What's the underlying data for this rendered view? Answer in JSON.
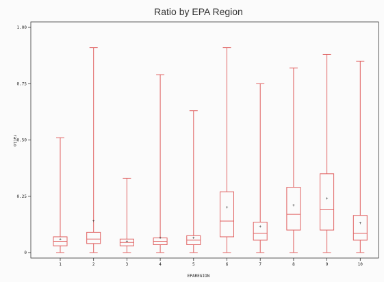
{
  "chart_data": {
    "type": "box",
    "title": "Ratio by EPA Region",
    "xlabel": "EPAREGION",
    "ylabel": "ratio",
    "ylim": [
      0,
      1
    ],
    "yticks": [
      "0",
      "0.25",
      "0.50",
      "0.75",
      "1.00"
    ],
    "categories": [
      "1",
      "2",
      "3",
      "4",
      "5",
      "6",
      "7",
      "8",
      "9",
      "10"
    ],
    "boxes": [
      {
        "min": 0.0,
        "q1": 0.03,
        "median": 0.05,
        "q3": 0.07,
        "max": 0.51,
        "mean": 0.06
      },
      {
        "min": 0.0,
        "q1": 0.04,
        "median": 0.06,
        "q3": 0.09,
        "max": 0.91,
        "mean": 0.14
      },
      {
        "min": 0.0,
        "q1": 0.03,
        "median": 0.045,
        "q3": 0.06,
        "max": 0.33,
        "mean": 0.05
      },
      {
        "min": 0.0,
        "q1": 0.035,
        "median": 0.05,
        "q3": 0.065,
        "max": 0.79,
        "mean": 0.065
      },
      {
        "min": 0.0,
        "q1": 0.035,
        "median": 0.055,
        "q3": 0.075,
        "max": 0.63,
        "mean": 0.065
      },
      {
        "min": 0.0,
        "q1": 0.07,
        "median": 0.14,
        "q3": 0.27,
        "max": 0.91,
        "mean": 0.2
      },
      {
        "min": 0.0,
        "q1": 0.055,
        "median": 0.085,
        "q3": 0.135,
        "max": 0.75,
        "mean": 0.115
      },
      {
        "min": 0.0,
        "q1": 0.1,
        "median": 0.17,
        "q3": 0.29,
        "max": 0.82,
        "mean": 0.21
      },
      {
        "min": 0.0,
        "q1": 0.1,
        "median": 0.19,
        "q3": 0.35,
        "max": 0.88,
        "mean": 0.24
      },
      {
        "min": 0.0,
        "q1": 0.055,
        "median": 0.085,
        "q3": 0.165,
        "max": 0.85,
        "mean": 0.13
      }
    ],
    "box_color": "#e06060",
    "axis_color": "#333333",
    "grid": false
  }
}
